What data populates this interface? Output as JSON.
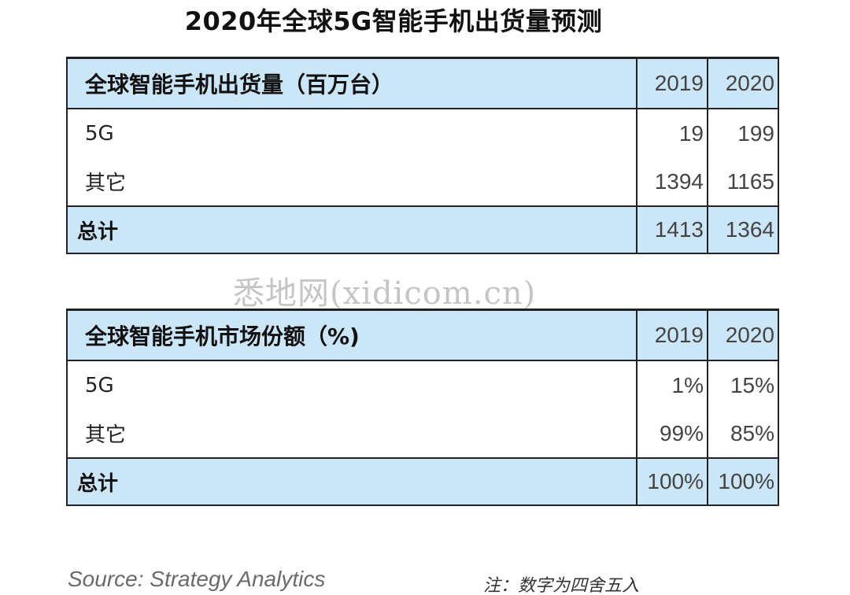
{
  "title": "2020年全球5G智能手机出货量预测",
  "shipments": {
    "header": "全球智能手机出货量（百万台）",
    "years": [
      "2019",
      "2020"
    ],
    "rows": [
      {
        "label": "5G",
        "values": [
          "19",
          "199"
        ]
      },
      {
        "label": "其它",
        "values": [
          "1394",
          "1165"
        ]
      }
    ],
    "total": {
      "label": "总计",
      "values": [
        "1413",
        "1364"
      ]
    }
  },
  "share": {
    "header": "全球智能手机市场份额（%)",
    "years": [
      "2019",
      "2020"
    ],
    "rows": [
      {
        "label": "5G",
        "values": [
          "1%",
          "15%"
        ]
      },
      {
        "label": "其它",
        "values": [
          "99%",
          "85%"
        ]
      }
    ],
    "total": {
      "label": "总计",
      "values": [
        "100%",
        "100%"
      ]
    }
  },
  "watermark": "悉地网(xidicom.cn)",
  "source": "Source: Strategy Analytics",
  "note": "注：数字为四舍五入"
}
